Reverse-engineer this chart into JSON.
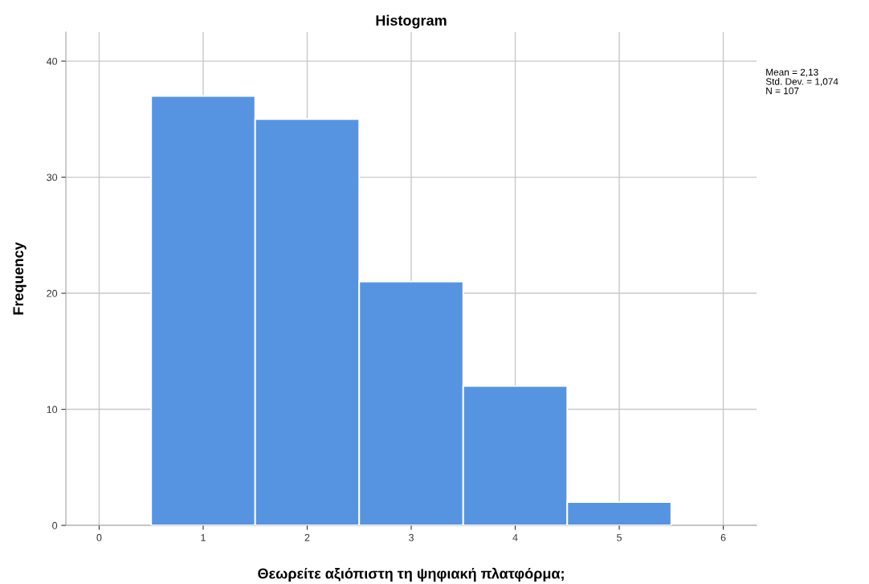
{
  "chart_data": {
    "type": "histogram",
    "title": "Histogram",
    "xlabel": "Θεωρείτε αξιόπιστη τη ψηφιακή πλατφόρμα;",
    "ylabel": "Frequency",
    "bins": [
      0.5,
      1.5,
      2.5,
      3.5,
      4.5,
      5.5
    ],
    "values": [
      37,
      35,
      21,
      12,
      2
    ],
    "color": "#5694e2",
    "xlim": [
      -0.32,
      6.32
    ],
    "xticks": [
      0,
      1,
      2,
      3,
      4,
      5,
      6
    ],
    "ylim": [
      0,
      42.5
    ],
    "yticks": [
      0,
      10,
      20,
      30,
      40
    ],
    "grid": true,
    "annotations": [
      "Mean = 2,13",
      "Std. Dev. = 1,074",
      "N = 107"
    ]
  }
}
